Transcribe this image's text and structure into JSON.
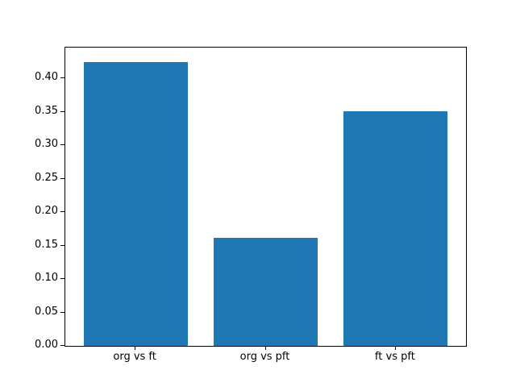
{
  "chart_data": {
    "type": "bar",
    "categories": [
      "org vs ft",
      "org vs pft",
      "ft vs pft"
    ],
    "values": [
      0.425,
      0.162,
      0.351
    ],
    "title": "",
    "xlabel": "",
    "ylabel": "",
    "ylim": [
      0,
      0.4463
    ],
    "xlim": [
      -0.54,
      2.54
    ],
    "bar_width": 0.8,
    "yticks": [
      0.0,
      0.05,
      0.1,
      0.15,
      0.2,
      0.25,
      0.3,
      0.35,
      0.4
    ],
    "ytick_labels": [
      "0.00",
      "0.05",
      "0.10",
      "0.15",
      "0.20",
      "0.25",
      "0.30",
      "0.35",
      "0.40"
    ],
    "bar_color": "#1f77b4",
    "spine_color": "#000000",
    "text_color": "#000000",
    "background_color": "#ffffff",
    "grid": false,
    "legend": null
  }
}
